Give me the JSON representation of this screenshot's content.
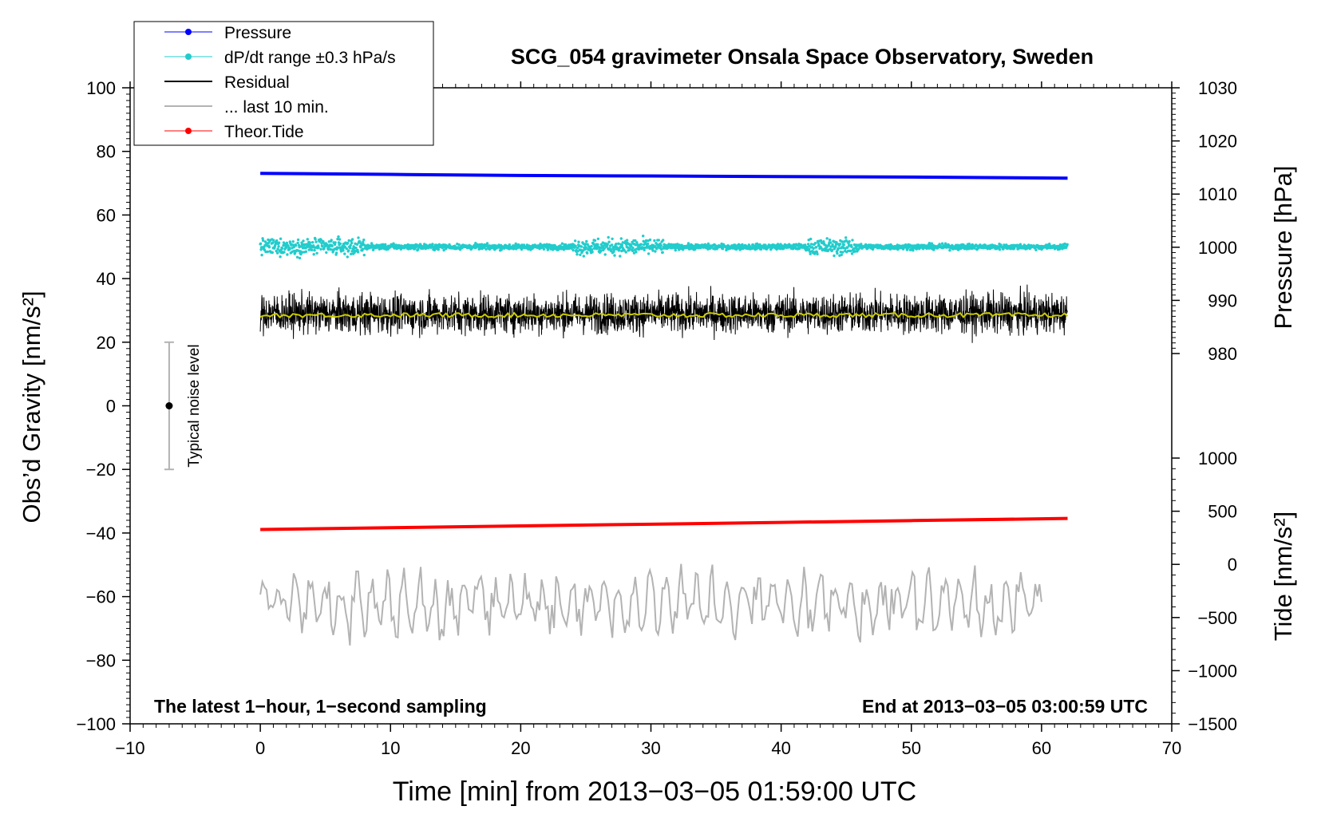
{
  "chart_data": {
    "type": "line",
    "title": "SCG_054 gravimeter Onsala Space Observatory, Sweden",
    "xlabel": "Time [min] from 2013−03−05 01:59:00 UTC",
    "ylabel_left": "Obs’d Gravity [nm/s²]",
    "ylabel_right_top": "Pressure [hPa]",
    "ylabel_right_bottom": "Tide [nm/s²]",
    "xlim": [
      -10,
      70
    ],
    "ylim_left": [
      -100,
      100
    ],
    "ylim_pressure": [
      980,
      1030
    ],
    "ylim_tide": [
      -1500,
      1000
    ],
    "grid": false,
    "legend_placement": "top-left",
    "x_ticks": [
      -10,
      0,
      10,
      20,
      30,
      40,
      50,
      60,
      70
    ],
    "x_tick_labels": [
      "−10",
      "0",
      "10",
      "20",
      "30",
      "40",
      "50",
      "60",
      "70"
    ],
    "y_left_ticks": [
      -100,
      -80,
      -60,
      -40,
      -20,
      0,
      20,
      40,
      60,
      80,
      100
    ],
    "y_left_tick_labels": [
      "−100",
      "−80",
      "−60",
      "−40",
      "−20",
      "0",
      "20",
      "40",
      "60",
      "80",
      "100"
    ],
    "y_pressure_ticks": [
      980,
      990,
      1000,
      1010,
      1020,
      1030
    ],
    "y_pressure_tick_labels": [
      "980",
      "990",
      "1000",
      "1010",
      "1020",
      "1030"
    ],
    "y_tide_ticks": [
      -1500,
      -1000,
      -500,
      0,
      500,
      1000
    ],
    "y_tide_tick_labels": [
      "−1500",
      "−1000",
      "−500",
      "0",
      "500",
      "1000"
    ],
    "series": [
      {
        "name": "Pressure",
        "color": "#0000ff",
        "axis": "pressure",
        "x": [
          0,
          10,
          20,
          30,
          40,
          50,
          62
        ],
        "values": [
          1013.9,
          1013.7,
          1013.5,
          1013.4,
          1013.3,
          1013.2,
          1013.0
        ]
      },
      {
        "name": "dP/dt range ±0.3 hPa/s",
        "color": "#22cccc",
        "axis": "left",
        "x_range": [
          0,
          62
        ],
        "center": 50,
        "spread": 2
      },
      {
        "name": "Residual",
        "color": "#000000",
        "axis": "left",
        "x_range": [
          0,
          62
        ],
        "center": 29,
        "spread": 8
      },
      {
        "name": "... last 10 min.",
        "color": "#b3b3b3",
        "axis": "left",
        "x_range": [
          0,
          60
        ],
        "center": -62,
        "spread": 6
      },
      {
        "name": "Theor.Tide",
        "color": "#ff0000",
        "axis": "tide",
        "x": [
          0,
          10,
          20,
          30,
          40,
          50,
          62
        ],
        "values": [
          328,
          345,
          362,
          378,
          395,
          412,
          432
        ]
      }
    ],
    "running_mean_color": "#cccc00",
    "annotations": {
      "noise_label": "Typical noise level",
      "noise_center": 0,
      "noise_range": [
        -20,
        20
      ],
      "noise_x": -7,
      "bottom_left": "The latest 1−hour, 1−second sampling",
      "bottom_right": "End at 2013−03−05 03:00:59 UTC"
    }
  }
}
